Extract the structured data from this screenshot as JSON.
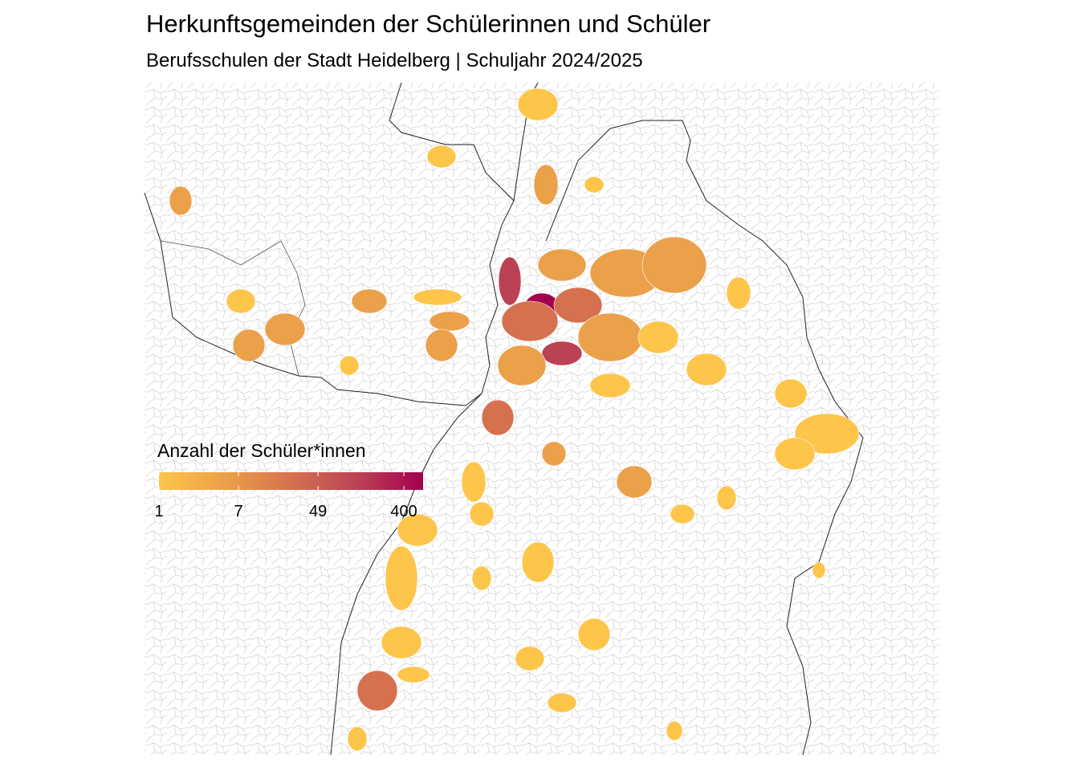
{
  "map_data": {
    "title": "Herkunftsgemeinden der Schülerinnen und Schüler",
    "subtitle": "Berufsschulen der Stadt Heidelberg | Schuljahr 2024/2025",
    "legend": {
      "title": "Anzahl der Schüler*innen",
      "log_scale": true,
      "range": [
        1,
        640
      ],
      "ticks": [
        1,
        7,
        49,
        400
      ],
      "colors": [
        "#fdc54a",
        "#eba04a",
        "#d5714f",
        "#bb4255",
        "#a3004f"
      ]
    }
  }
}
